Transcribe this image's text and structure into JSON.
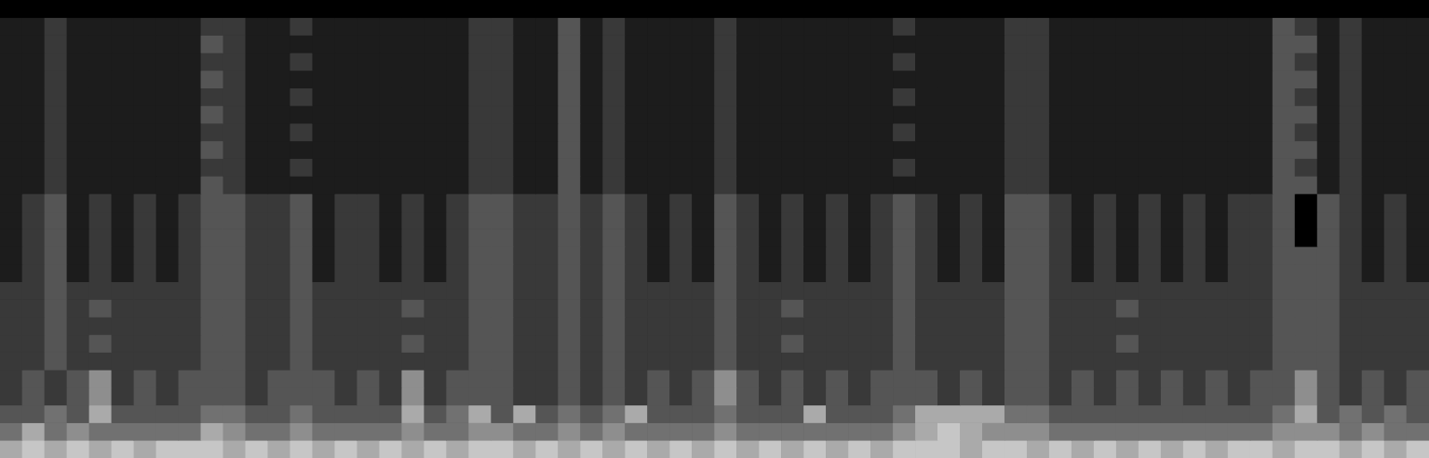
{
  "chart_data": {
    "type": "heatmap",
    "tick_labels": false,
    "grid": false,
    "color_range": [
      0,
      9
    ],
    "cells": [
      [
        0,
        0,
        0,
        0,
        0,
        0,
        0,
        0,
        0,
        0,
        0,
        0,
        0,
        0,
        0,
        0,
        0,
        0,
        0,
        0,
        0,
        0,
        0,
        0,
        0,
        0,
        0,
        0,
        0,
        0,
        0,
        0,
        0,
        0,
        0,
        0,
        0,
        0,
        0,
        0,
        0,
        0,
        0,
        0,
        0,
        0,
        0,
        0,
        0,
        0,
        0,
        0,
        0,
        0,
        0,
        0,
        0,
        0,
        0,
        0,
        0,
        0,
        0,
        0
      ],
      [
        1,
        1,
        2,
        1,
        1,
        1,
        1,
        1,
        1,
        2,
        2,
        1,
        1,
        2,
        1,
        1,
        1,
        1,
        1,
        1,
        1,
        2,
        2,
        1,
        1,
        3,
        1,
        2,
        1,
        1,
        1,
        1,
        2,
        1,
        1,
        1,
        1,
        1,
        1,
        1,
        2,
        1,
        1,
        1,
        1,
        2,
        2,
        1,
        1,
        1,
        1,
        1,
        1,
        1,
        1,
        1,
        1,
        3,
        2,
        1,
        2,
        1,
        1,
        1
      ],
      [
        1,
        1,
        2,
        1,
        1,
        1,
        1,
        1,
        1,
        3,
        2,
        1,
        1,
        1,
        1,
        1,
        1,
        1,
        1,
        1,
        1,
        2,
        2,
        1,
        1,
        3,
        1,
        2,
        1,
        1,
        1,
        1,
        2,
        1,
        1,
        1,
        1,
        1,
        1,
        1,
        1,
        1,
        1,
        1,
        1,
        2,
        2,
        1,
        1,
        1,
        1,
        1,
        1,
        1,
        1,
        1,
        1,
        3,
        3,
        1,
        2,
        1,
        1,
        1
      ],
      [
        1,
        1,
        2,
        1,
        1,
        1,
        1,
        1,
        1,
        2,
        2,
        1,
        1,
        2,
        1,
        1,
        1,
        1,
        1,
        1,
        1,
        2,
        2,
        1,
        1,
        3,
        1,
        2,
        1,
        1,
        1,
        1,
        2,
        1,
        1,
        1,
        1,
        1,
        1,
        1,
        2,
        1,
        1,
        1,
        1,
        2,
        2,
        1,
        1,
        1,
        1,
        1,
        1,
        1,
        1,
        1,
        1,
        3,
        2,
        1,
        2,
        1,
        1,
        1
      ],
      [
        1,
        1,
        2,
        1,
        1,
        1,
        1,
        1,
        1,
        3,
        2,
        1,
        1,
        1,
        1,
        1,
        1,
        1,
        1,
        1,
        1,
        2,
        2,
        1,
        1,
        3,
        1,
        2,
        1,
        1,
        1,
        1,
        2,
        1,
        1,
        1,
        1,
        1,
        1,
        1,
        1,
        1,
        1,
        1,
        1,
        2,
        2,
        1,
        1,
        1,
        1,
        1,
        1,
        1,
        1,
        1,
        1,
        3,
        3,
        1,
        2,
        1,
        1,
        1
      ],
      [
        1,
        1,
        2,
        1,
        1,
        1,
        1,
        1,
        1,
        2,
        2,
        1,
        1,
        2,
        1,
        1,
        1,
        1,
        1,
        1,
        1,
        2,
        2,
        1,
        1,
        3,
        1,
        2,
        1,
        1,
        1,
        1,
        2,
        1,
        1,
        1,
        1,
        1,
        1,
        1,
        2,
        1,
        1,
        1,
        1,
        2,
        2,
        1,
        1,
        1,
        1,
        1,
        1,
        1,
        1,
        1,
        1,
        3,
        2,
        1,
        2,
        1,
        1,
        1
      ],
      [
        1,
        1,
        2,
        1,
        1,
        1,
        1,
        1,
        1,
        3,
        2,
        1,
        1,
        1,
        1,
        1,
        1,
        1,
        1,
        1,
        1,
        2,
        2,
        1,
        1,
        3,
        1,
        2,
        1,
        1,
        1,
        1,
        2,
        1,
        1,
        1,
        1,
        1,
        1,
        1,
        1,
        1,
        1,
        1,
        1,
        2,
        2,
        1,
        1,
        1,
        1,
        1,
        1,
        1,
        1,
        1,
        1,
        3,
        3,
        1,
        2,
        1,
        1,
        1
      ],
      [
        1,
        1,
        2,
        1,
        1,
        1,
        1,
        1,
        1,
        2,
        2,
        1,
        1,
        2,
        1,
        1,
        1,
        1,
        1,
        1,
        1,
        2,
        2,
        1,
        1,
        3,
        1,
        2,
        1,
        1,
        1,
        1,
        2,
        1,
        1,
        1,
        1,
        1,
        1,
        1,
        2,
        1,
        1,
        1,
        1,
        2,
        2,
        1,
        1,
        1,
        1,
        1,
        1,
        1,
        1,
        1,
        1,
        3,
        2,
        1,
        2,
        1,
        1,
        1
      ],
      [
        1,
        1,
        2,
        1,
        1,
        1,
        1,
        1,
        1,
        3,
        2,
        1,
        1,
        1,
        1,
        1,
        1,
        1,
        1,
        1,
        1,
        2,
        2,
        1,
        1,
        3,
        1,
        2,
        1,
        1,
        1,
        1,
        2,
        1,
        1,
        1,
        1,
        1,
        1,
        1,
        1,
        1,
        1,
        1,
        1,
        2,
        2,
        1,
        1,
        1,
        1,
        1,
        1,
        1,
        1,
        1,
        1,
        3,
        3,
        1,
        2,
        1,
        1,
        1
      ],
      [
        1,
        1,
        2,
        1,
        1,
        1,
        1,
        1,
        1,
        2,
        2,
        1,
        1,
        2,
        1,
        1,
        1,
        1,
        1,
        1,
        1,
        2,
        2,
        1,
        1,
        3,
        1,
        2,
        1,
        1,
        1,
        1,
        2,
        1,
        1,
        1,
        1,
        1,
        1,
        1,
        2,
        1,
        1,
        1,
        1,
        2,
        2,
        1,
        1,
        1,
        1,
        1,
        1,
        1,
        1,
        1,
        1,
        3,
        2,
        1,
        2,
        1,
        1,
        1
      ],
      [
        1,
        1,
        2,
        1,
        1,
        1,
        1,
        1,
        1,
        3,
        2,
        1,
        1,
        1,
        1,
        1,
        1,
        1,
        1,
        1,
        1,
        2,
        2,
        1,
        1,
        3,
        1,
        2,
        1,
        1,
        1,
        1,
        2,
        1,
        1,
        1,
        1,
        1,
        1,
        1,
        1,
        1,
        1,
        1,
        1,
        2,
        2,
        1,
        1,
        1,
        1,
        1,
        1,
        1,
        1,
        1,
        1,
        3,
        3,
        1,
        2,
        1,
        1,
        1
      ],
      [
        1,
        2,
        3,
        1,
        2,
        1,
        2,
        1,
        2,
        3,
        3,
        2,
        2,
        3,
        1,
        2,
        2,
        1,
        2,
        1,
        2,
        3,
        3,
        2,
        2,
        3,
        2,
        3,
        2,
        1,
        2,
        1,
        3,
        2,
        1,
        2,
        1,
        2,
        1,
        2,
        3,
        2,
        1,
        2,
        1,
        3,
        3,
        2,
        1,
        2,
        1,
        2,
        1,
        2,
        1,
        2,
        2,
        3,
        0,
        3,
        2,
        1,
        2,
        1
      ],
      [
        1,
        2,
        3,
        1,
        2,
        1,
        2,
        1,
        2,
        3,
        3,
        2,
        2,
        3,
        1,
        2,
        2,
        1,
        2,
        1,
        2,
        3,
        3,
        2,
        2,
        3,
        2,
        3,
        2,
        1,
        2,
        1,
        3,
        2,
        1,
        2,
        1,
        2,
        1,
        2,
        3,
        2,
        1,
        2,
        1,
        3,
        3,
        2,
        1,
        2,
        1,
        2,
        1,
        2,
        1,
        2,
        2,
        3,
        0,
        3,
        2,
        1,
        2,
        1
      ],
      [
        1,
        2,
        3,
        1,
        2,
        1,
        2,
        1,
        2,
        3,
        3,
        2,
        2,
        3,
        1,
        2,
        2,
        1,
        2,
        1,
        2,
        3,
        3,
        2,
        2,
        3,
        2,
        3,
        2,
        1,
        2,
        1,
        3,
        2,
        1,
        2,
        1,
        2,
        1,
        2,
        3,
        2,
        1,
        2,
        1,
        3,
        3,
        2,
        1,
        2,
        1,
        2,
        1,
        2,
        1,
        2,
        2,
        3,
        0,
        3,
        2,
        1,
        2,
        1
      ],
      [
        1,
        2,
        3,
        1,
        2,
        1,
        2,
        1,
        2,
        3,
        3,
        2,
        2,
        3,
        1,
        2,
        2,
        1,
        2,
        1,
        2,
        3,
        3,
        2,
        2,
        3,
        2,
        3,
        2,
        1,
        2,
        1,
        3,
        2,
        1,
        2,
        1,
        2,
        1,
        2,
        3,
        2,
        1,
        2,
        1,
        3,
        3,
        2,
        1,
        2,
        1,
        2,
        1,
        2,
        1,
        2,
        2,
        3,
        3,
        3,
        2,
        1,
        2,
        1
      ],
      [
        1,
        2,
        3,
        1,
        2,
        1,
        2,
        1,
        2,
        3,
        3,
        2,
        2,
        3,
        1,
        2,
        2,
        1,
        2,
        1,
        2,
        3,
        3,
        2,
        2,
        3,
        2,
        3,
        2,
        1,
        2,
        1,
        3,
        2,
        1,
        2,
        1,
        2,
        1,
        2,
        3,
        2,
        1,
        2,
        1,
        3,
        3,
        2,
        1,
        2,
        1,
        2,
        1,
        2,
        1,
        2,
        2,
        3,
        3,
        3,
        2,
        1,
        2,
        1
      ],
      [
        2,
        2,
        3,
        2,
        2,
        2,
        2,
        2,
        2,
        3,
        3,
        2,
        2,
        3,
        2,
        2,
        2,
        2,
        2,
        2,
        2,
        3,
        3,
        2,
        2,
        3,
        2,
        3,
        2,
        2,
        2,
        2,
        3,
        2,
        2,
        2,
        2,
        2,
        2,
        2,
        3,
        2,
        2,
        2,
        2,
        3,
        3,
        2,
        2,
        2,
        2,
        2,
        2,
        2,
        2,
        2,
        2,
        3,
        3,
        3,
        2,
        2,
        2,
        2
      ],
      [
        2,
        2,
        3,
        2,
        3,
        2,
        2,
        2,
        2,
        3,
        3,
        2,
        2,
        3,
        2,
        2,
        2,
        2,
        3,
        2,
        2,
        3,
        3,
        2,
        2,
        3,
        2,
        3,
        2,
        2,
        2,
        2,
        3,
        2,
        2,
        3,
        2,
        2,
        2,
        2,
        3,
        2,
        2,
        2,
        2,
        3,
        3,
        2,
        2,
        2,
        3,
        2,
        2,
        2,
        2,
        2,
        2,
        3,
        3,
        3,
        2,
        2,
        2,
        2
      ],
      [
        2,
        2,
        3,
        2,
        2,
        2,
        2,
        2,
        2,
        3,
        3,
        2,
        2,
        3,
        2,
        2,
        2,
        2,
        2,
        2,
        2,
        3,
        3,
        2,
        2,
        3,
        2,
        3,
        2,
        2,
        2,
        2,
        3,
        2,
        2,
        2,
        2,
        2,
        2,
        2,
        3,
        2,
        2,
        2,
        2,
        3,
        3,
        2,
        2,
        2,
        2,
        2,
        2,
        2,
        2,
        2,
        2,
        3,
        3,
        3,
        2,
        2,
        2,
        2
      ],
      [
        2,
        2,
        3,
        2,
        3,
        2,
        2,
        2,
        2,
        3,
        3,
        2,
        2,
        3,
        2,
        2,
        2,
        2,
        3,
        2,
        2,
        3,
        3,
        2,
        2,
        3,
        2,
        3,
        2,
        2,
        2,
        2,
        3,
        2,
        2,
        3,
        2,
        2,
        2,
        2,
        3,
        2,
        2,
        2,
        2,
        3,
        3,
        2,
        2,
        2,
        3,
        2,
        2,
        2,
        2,
        2,
        2,
        3,
        3,
        3,
        2,
        2,
        2,
        2
      ],
      [
        2,
        2,
        3,
        2,
        2,
        2,
        2,
        2,
        2,
        3,
        3,
        2,
        2,
        3,
        2,
        2,
        2,
        2,
        2,
        2,
        2,
        3,
        3,
        2,
        2,
        3,
        2,
        3,
        2,
        2,
        2,
        2,
        3,
        2,
        2,
        2,
        2,
        2,
        2,
        2,
        3,
        2,
        2,
        2,
        2,
        3,
        3,
        2,
        2,
        2,
        2,
        2,
        2,
        2,
        2,
        2,
        2,
        3,
        3,
        3,
        2,
        2,
        2,
        2
      ],
      [
        2,
        3,
        2,
        3,
        5,
        2,
        3,
        2,
        3,
        3,
        3,
        2,
        3,
        3,
        3,
        2,
        3,
        2,
        5,
        2,
        3,
        3,
        3,
        2,
        2,
        3,
        2,
        3,
        2,
        3,
        2,
        3,
        5,
        3,
        2,
        3,
        2,
        3,
        2,
        3,
        3,
        3,
        2,
        3,
        2,
        3,
        3,
        2,
        3,
        2,
        3,
        2,
        3,
        2,
        3,
        2,
        3,
        3,
        5,
        3,
        2,
        3,
        2,
        3
      ],
      [
        2,
        3,
        2,
        3,
        5,
        2,
        3,
        2,
        3,
        3,
        3,
        2,
        3,
        3,
        3,
        2,
        3,
        2,
        5,
        2,
        3,
        3,
        3,
        2,
        2,
        3,
        2,
        3,
        2,
        3,
        2,
        3,
        5,
        3,
        2,
        3,
        2,
        3,
        2,
        3,
        3,
        3,
        2,
        3,
        2,
        3,
        3,
        2,
        3,
        2,
        3,
        2,
        3,
        2,
        3,
        2,
        3,
        3,
        5,
        3,
        2,
        3,
        2,
        3
      ],
      [
        3,
        3,
        4,
        3,
        6,
        3,
        3,
        3,
        3,
        4,
        4,
        3,
        3,
        4,
        3,
        3,
        3,
        3,
        6,
        3,
        4,
        6,
        3,
        6,
        3,
        4,
        3,
        4,
        6,
        3,
        3,
        3,
        4,
        3,
        3,
        3,
        6,
        3,
        3,
        3,
        4,
        6,
        6,
        6,
        6,
        4,
        4,
        3,
        3,
        3,
        3,
        3,
        3,
        3,
        3,
        3,
        3,
        4,
        6,
        3,
        4,
        3,
        4,
        3
      ],
      [
        4,
        6,
        4,
        5,
        4,
        4,
        4,
        4,
        4,
        6,
        5,
        4,
        4,
        5,
        4,
        4,
        4,
        4,
        5,
        4,
        4,
        5,
        5,
        4,
        4,
        5,
        4,
        5,
        4,
        4,
        4,
        4,
        5,
        4,
        4,
        4,
        4,
        4,
        4,
        4,
        5,
        6,
        7,
        6,
        5,
        5,
        5,
        4,
        4,
        4,
        4,
        4,
        4,
        4,
        4,
        4,
        4,
        5,
        5,
        5,
        4,
        5,
        4,
        4
      ],
      [
        6,
        7,
        6,
        7,
        6,
        7,
        6,
        7,
        7,
        7,
        6,
        7,
        6,
        7,
        6,
        7,
        6,
        7,
        6,
        7,
        6,
        7,
        7,
        6,
        7,
        6,
        7,
        6,
        7,
        6,
        7,
        6,
        7,
        6,
        7,
        6,
        7,
        6,
        7,
        6,
        7,
        7,
        7,
        6,
        7,
        7,
        6,
        7,
        6,
        7,
        6,
        7,
        6,
        7,
        6,
        7,
        7,
        6,
        7,
        7,
        6,
        7,
        6,
        7
      ]
    ]
  }
}
